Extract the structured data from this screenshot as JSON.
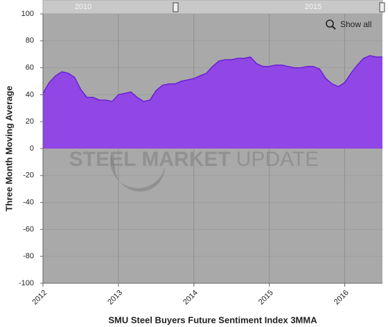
{
  "chart_data": {
    "type": "area",
    "title": "SMU Steel Buyers Future Sentiment Index 3MMA",
    "y_label": "Three Month Moving Average",
    "watermark": [
      "STEEL",
      "MARKET",
      "UPDATE"
    ],
    "show_all": "Show all",
    "navigator_labels": [
      "2010",
      "2015"
    ],
    "x": [
      2012,
      2012.083,
      2012.167,
      2012.25,
      2012.333,
      2012.417,
      2012.5,
      2012.583,
      2012.667,
      2012.75,
      2012.833,
      2012.917,
      2013,
      2013.083,
      2013.167,
      2013.25,
      2013.333,
      2013.417,
      2013.5,
      2013.583,
      2013.667,
      2013.75,
      2013.833,
      2013.917,
      2014,
      2014.083,
      2014.167,
      2014.25,
      2014.333,
      2014.417,
      2014.5,
      2014.583,
      2014.667,
      2014.75,
      2014.833,
      2014.917,
      2015,
      2015.083,
      2015.167,
      2015.25,
      2015.333,
      2015.417,
      2015.5,
      2015.583,
      2015.667,
      2015.75,
      2015.833,
      2015.917,
      2016,
      2016.083,
      2016.167,
      2016.25,
      2016.333,
      2016.417,
      2016.5
    ],
    "series": [
      {
        "name": "SMU Steel Buyers Future Sentiment Index 3MMA",
        "color": "#9147e6",
        "line_color": "#6a1ed6",
        "values": [
          41,
          49,
          54,
          57,
          56,
          53,
          44,
          38,
          38,
          36,
          36,
          35,
          40,
          41,
          42,
          38,
          35,
          36,
          43,
          47,
          48,
          48,
          50,
          51,
          52,
          54,
          56,
          61,
          65,
          66,
          66,
          67,
          67,
          68,
          63,
          61,
          61,
          62,
          62,
          61,
          60,
          60,
          61,
          61,
          59,
          52,
          48,
          46,
          49,
          56,
          62,
          67,
          69,
          68,
          68
        ]
      }
    ],
    "xlim": [
      2012,
      2016.5
    ],
    "xticks": [
      2012,
      2013,
      2014,
      2015,
      2016
    ],
    "ylim": [
      -100,
      100
    ],
    "yticks": [
      -100,
      -80,
      -60,
      -40,
      -20,
      0,
      20,
      40,
      60,
      80,
      100
    ],
    "grid": true,
    "background": "#a9a9a9"
  }
}
